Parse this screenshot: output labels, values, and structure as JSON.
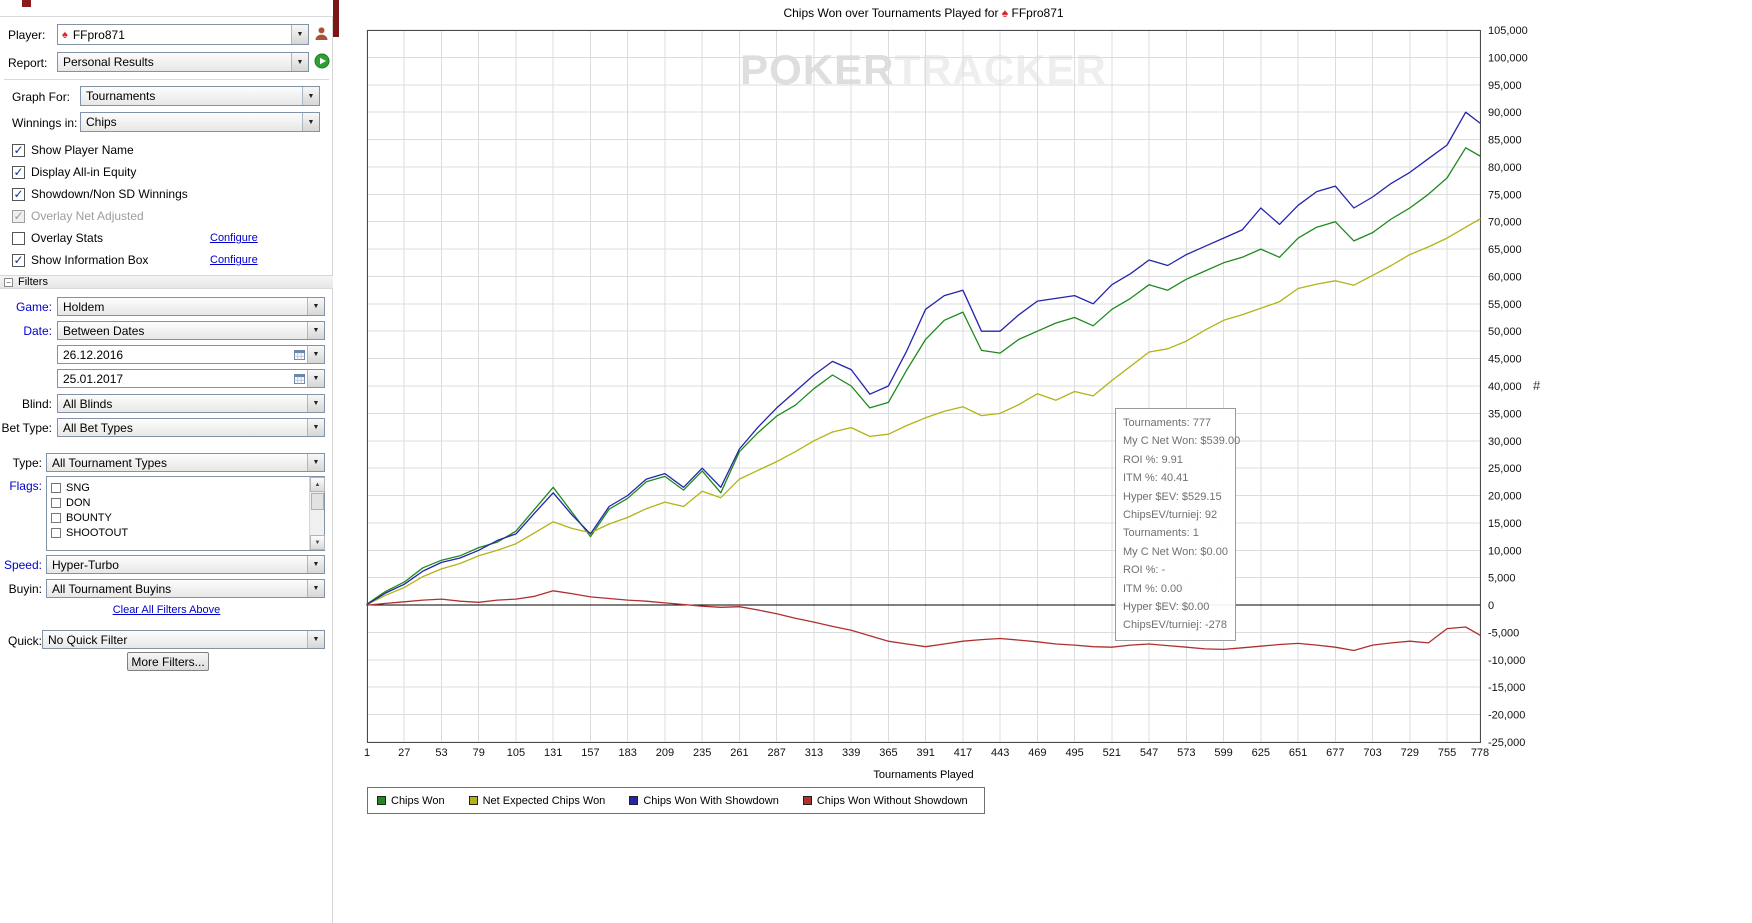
{
  "sidebar": {
    "player": {
      "label": "Player:",
      "value": "FFpro871"
    },
    "report": {
      "label": "Report:",
      "value": "Personal Results"
    },
    "graph_for": {
      "label": "Graph For:",
      "value": "Tournaments"
    },
    "winnings_in": {
      "label": "Winnings in:",
      "value": "Chips"
    },
    "options": [
      {
        "label": "Show Player Name",
        "checked": true,
        "disabled": false,
        "link": null
      },
      {
        "label": "Display All-in Equity",
        "checked": true,
        "disabled": false,
        "link": null
      },
      {
        "label": "Showdown/Non SD Winnings",
        "checked": true,
        "disabled": false,
        "link": null
      },
      {
        "label": "Overlay Net Adjusted",
        "checked": true,
        "disabled": true,
        "link": null
      },
      {
        "label": "Overlay Stats",
        "checked": false,
        "disabled": false,
        "link": "Configure"
      },
      {
        "label": "Show Information Box",
        "checked": true,
        "disabled": false,
        "link": "Configure"
      }
    ],
    "filters_header": "Filters",
    "filters": {
      "game": {
        "label": "Game:",
        "value": "Holdem"
      },
      "date": {
        "label": "Date:",
        "value": "Between Dates"
      },
      "date_from": "26.12.2016",
      "date_to": "25.01.2017",
      "blind": {
        "label": "Blind:",
        "value": "All Blinds"
      },
      "bet_type": {
        "label": "Bet Type:",
        "value": "All Bet Types"
      },
      "type": {
        "label": "Type:",
        "value": "All Tournament Types"
      },
      "flags": {
        "label": "Flags:",
        "options": [
          "SNG",
          "DON",
          "BOUNTY",
          "SHOOTOUT"
        ]
      },
      "speed": {
        "label": "Speed:",
        "value": "Hyper-Turbo"
      },
      "buyin": {
        "label": "Buyin:",
        "value": "All Tournament Buyins"
      },
      "clear_link": "Clear All Filters Above",
      "quick": {
        "label": "Quick:",
        "value": "No Quick Filter"
      },
      "more_filters": "More Filters..."
    }
  },
  "chart": {
    "title_prefix": "Chips Won over Tournaments Played for",
    "title_player": "FFpro871",
    "watermark_left": "POKER",
    "watermark_right": "TRACKER",
    "cursor_marker": "#",
    "cursor_marker_y_value": 40000,
    "info_box_lines": [
      "Tournaments: 777",
      "My C Net Won: $539.00",
      "ROI %: 9.91",
      "ITM %: 40.41",
      "Hyper $EV: $529.15",
      "ChipsEV/turniej: 92",
      "Tournaments: 1",
      "My C Net Won: $0.00",
      "ROI %: -",
      "ITM %: 0.00",
      "Hyper $EV: $0.00",
      "ChipsEV/turniej: -278"
    ]
  },
  "chart_data": {
    "type": "line",
    "title": "Chips Won over Tournaments Played for FFpro871",
    "xlabel": "Tournaments Played",
    "ylabel": "",
    "xlim": [
      1,
      778
    ],
    "ylim": [
      -25000,
      105000
    ],
    "y_tick_step": 5000,
    "grid": true,
    "legend_position": "bottom-left",
    "x_ticks": [
      1,
      27,
      53,
      79,
      105,
      131,
      157,
      183,
      209,
      235,
      261,
      287,
      313,
      339,
      365,
      391,
      417,
      443,
      469,
      495,
      521,
      547,
      573,
      599,
      625,
      651,
      677,
      703,
      729,
      755,
      778
    ],
    "x": [
      1,
      14,
      27,
      40,
      53,
      66,
      79,
      92,
      105,
      118,
      131,
      144,
      157,
      170,
      183,
      196,
      209,
      222,
      235,
      248,
      261,
      274,
      287,
      300,
      313,
      326,
      339,
      352,
      365,
      378,
      391,
      404,
      417,
      430,
      443,
      456,
      469,
      482,
      495,
      508,
      521,
      534,
      547,
      560,
      573,
      586,
      599,
      612,
      625,
      638,
      651,
      664,
      677,
      690,
      703,
      716,
      729,
      742,
      755,
      768,
      778
    ],
    "series": [
      {
        "name": "Chips Won",
        "color": "#1e8a1e",
        "values": [
          200,
          2500,
          4200,
          6800,
          8200,
          9000,
          10500,
          11500,
          13500,
          17500,
          21500,
          17000,
          12500,
          17500,
          19500,
          22500,
          23500,
          21000,
          24500,
          20500,
          28000,
          31500,
          34500,
          36500,
          39500,
          42000,
          40000,
          36000,
          37000,
          43000,
          48500,
          52000,
          53500,
          46500,
          46000,
          48500,
          50000,
          51500,
          52500,
          51000,
          54000,
          56000,
          58500,
          57500,
          59500,
          61000,
          62500,
          63500,
          65000,
          63500,
          67000,
          69000,
          70000,
          66500,
          68000,
          70500,
          72500,
          75000,
          78000,
          83500,
          82000
        ]
      },
      {
        "name": "Net Expected Chips Won",
        "color": "#b3b317",
        "values": [
          100,
          1800,
          3200,
          5200,
          6600,
          7600,
          9000,
          10000,
          11200,
          13200,
          15200,
          14000,
          13200,
          14800,
          16000,
          17600,
          18800,
          18000,
          20800,
          19600,
          23000,
          24600,
          26200,
          28000,
          30000,
          31600,
          32400,
          30800,
          31200,
          32800,
          34200,
          35400,
          36200,
          34600,
          35000,
          36600,
          38600,
          37400,
          39000,
          38200,
          41000,
          43600,
          46200,
          46800,
          48200,
          50200,
          52000,
          53000,
          54200,
          55400,
          57800,
          58600,
          59200,
          58400,
          60200,
          62000,
          64000,
          65400,
          67000,
          69000,
          70500
        ]
      },
      {
        "name": "Chips Won With Showdown",
        "color": "#2424ad",
        "values": [
          100,
          2200,
          3800,
          6200,
          7800,
          8600,
          10000,
          11800,
          13000,
          16800,
          20500,
          16500,
          13000,
          18000,
          20000,
          23000,
          24000,
          21500,
          25000,
          21500,
          28500,
          32500,
          36000,
          39000,
          42000,
          44500,
          43000,
          38500,
          40000,
          46500,
          54000,
          56500,
          57500,
          50000,
          50000,
          53000,
          55500,
          56000,
          56500,
          55000,
          58500,
          60500,
          63000,
          62000,
          64000,
          65500,
          67000,
          68500,
          72500,
          69500,
          73000,
          75500,
          76500,
          72500,
          74500,
          77000,
          79000,
          81500,
          84000,
          90000,
          88000
        ]
      },
      {
        "name": "Chips Won Without Showdown",
        "color": "#b03030",
        "values": [
          0,
          300,
          600,
          900,
          1100,
          700,
          500,
          900,
          1100,
          1600,
          2600,
          2100,
          1500,
          1200,
          900,
          700,
          400,
          100,
          -200,
          -400,
          -300,
          -900,
          -1600,
          -2400,
          -3100,
          -3900,
          -4600,
          -5600,
          -6600,
          -7100,
          -7600,
          -7100,
          -6600,
          -6300,
          -6100,
          -6400,
          -6700,
          -7100,
          -7300,
          -7600,
          -7700,
          -7300,
          -7100,
          -7400,
          -7700,
          -8000,
          -8100,
          -7800,
          -7500,
          -7200,
          -7000,
          -7300,
          -7700,
          -8300,
          -7300,
          -6900,
          -6600,
          -6900,
          -4300,
          -4000,
          -5500
        ]
      }
    ]
  }
}
